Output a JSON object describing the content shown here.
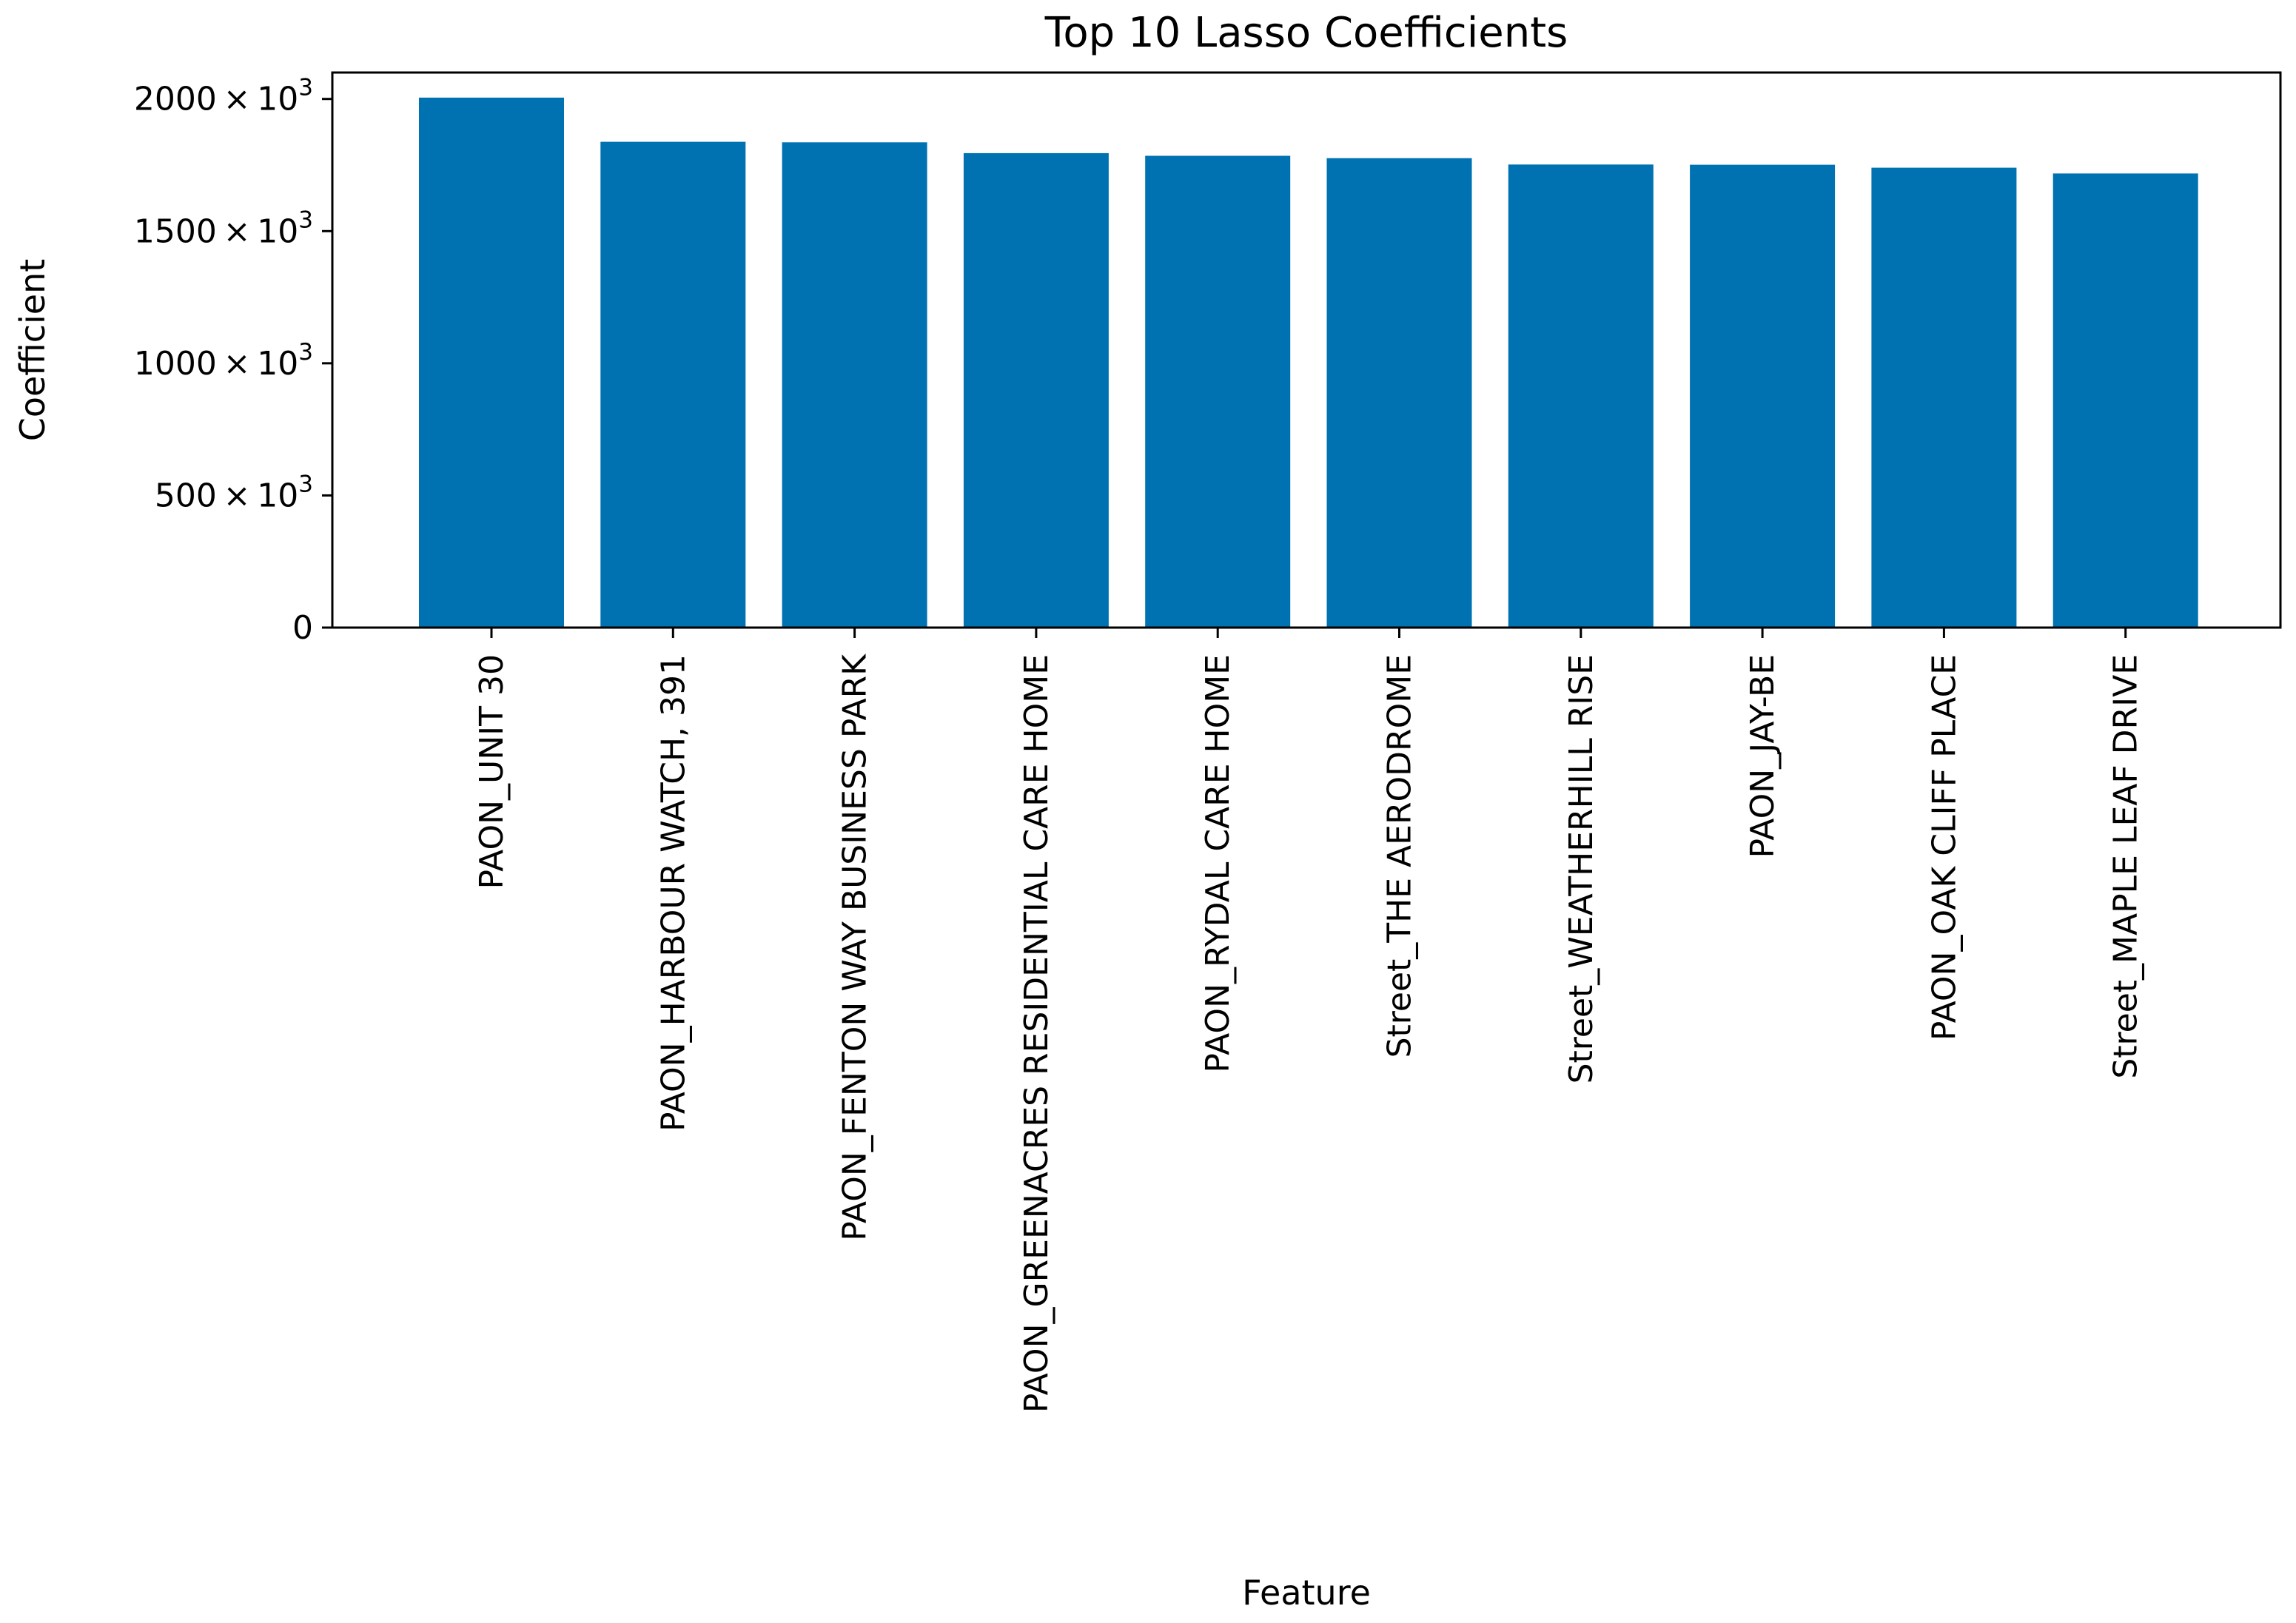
{
  "chart_data": {
    "type": "bar",
    "title": "Top 10 Lasso Coefficients",
    "xlabel": "Feature",
    "ylabel": "Coefficient",
    "ylim": [
      0,
      2100000
    ],
    "grid": false,
    "color": "#0072b2",
    "yticks": [
      {
        "value": 0,
        "mantissa": "0",
        "mult": "",
        "base": "",
        "exp": ""
      },
      {
        "value": 500000,
        "mantissa": "500",
        "mult": "×",
        "base": "10",
        "exp": "3"
      },
      {
        "value": 1000000,
        "mantissa": "1000",
        "mult": "×",
        "base": "10",
        "exp": "3"
      },
      {
        "value": 1500000,
        "mantissa": "1500",
        "mult": "×",
        "base": "10",
        "exp": "3"
      },
      {
        "value": 2000000,
        "mantissa": "2000",
        "mult": "×",
        "base": "10",
        "exp": "3"
      }
    ],
    "categories": [
      "PAON_UNIT 30",
      "PAON_HARBOUR WATCH, 391",
      "PAON_FENTON WAY BUSINESS PARK",
      "PAON_GREENACRES RESIDENTIAL CARE HOME",
      "PAON_RYDAL CARE HOME",
      "Street_THE AERODROME",
      "Street_WEATHERHILL RISE",
      "PAON_JAY-BE",
      "PAON_OAK CLIFF PLACE",
      "Street_MAPLE LEAF DRIVE"
    ],
    "values": [
      2005000,
      1838000,
      1836000,
      1795000,
      1785000,
      1776000,
      1752000,
      1751000,
      1740000,
      1718000
    ]
  }
}
